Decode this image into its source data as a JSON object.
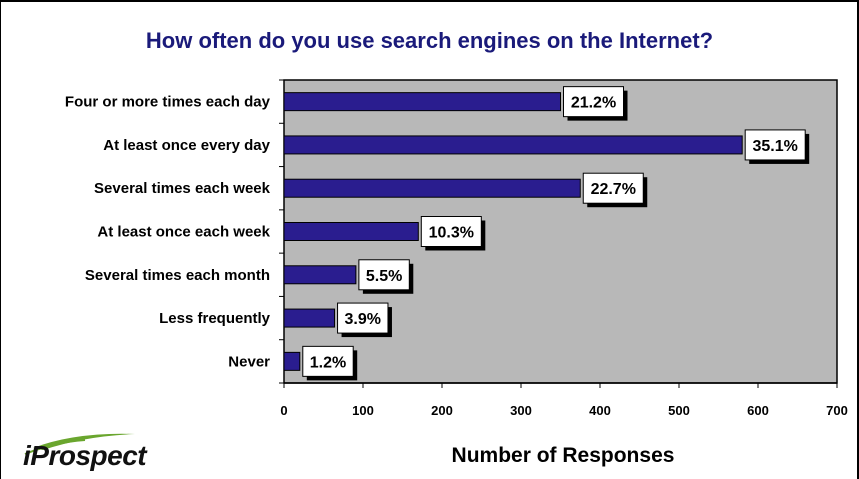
{
  "chart_data": {
    "type": "bar",
    "orientation": "horizontal",
    "title": "How often do you use search engines on the Internet?",
    "xlabel": "Number of Responses",
    "ylabel": "",
    "categories": [
      "Four or more times each day",
      "At least once every day",
      "Several times each week",
      "At least once each week",
      "Several times each month",
      "Less frequently",
      "Never"
    ],
    "values": [
      350,
      580,
      375,
      170,
      91,
      64,
      20
    ],
    "data_labels": [
      "21.2%",
      "35.1%",
      "22.7%",
      "10.3%",
      "5.5%",
      "3.9%",
      "1.2%"
    ],
    "xlim": [
      0,
      700
    ],
    "xticks": [
      "0",
      "100",
      "200",
      "300",
      "400",
      "500",
      "600",
      "700"
    ],
    "grid": false,
    "legend": "none",
    "colors": {
      "bar": "#2a1d8f",
      "plot_background": "#b8b8b8",
      "title": "#1a1a7a",
      "logo_swoosh": "#6aa62e"
    }
  },
  "logo": {
    "text": "iProspect"
  }
}
